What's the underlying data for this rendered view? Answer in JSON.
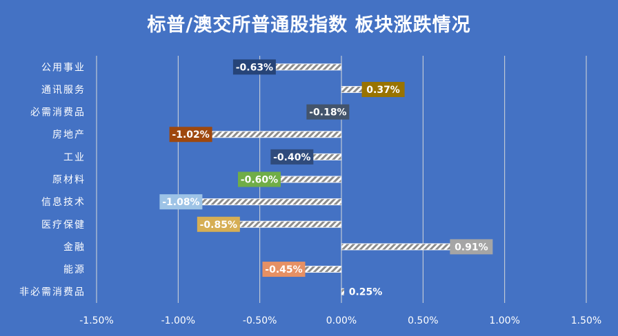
{
  "title": "标普/澳交所普通股指数 板块涨跌情况",
  "chart_data": {
    "type": "bar",
    "orientation": "horizontal",
    "title": "标普/澳交所普通股指数 板块涨跌情况",
    "categories": [
      "公用事业",
      "通讯服务",
      "必需消费品",
      "房地产",
      "工业",
      "原材料",
      "信息技术",
      "医疗保健",
      "金融",
      "能源",
      "非必需消费品"
    ],
    "values": [
      -0.63,
      0.37,
      -0.18,
      -1.02,
      -0.4,
      -0.6,
      -1.08,
      -0.85,
      0.91,
      -0.45,
      0.25
    ],
    "data_labels": [
      "-0.63%",
      "0.37%",
      "-0.18%",
      "-1.02%",
      "-0.40%",
      "-0.60%",
      "-1.08%",
      "-0.85%",
      "0.91%",
      "-0.45%",
      "0.25%"
    ],
    "label_colors": [
      "#264478",
      "#997300",
      "#43546C",
      "#9E480E",
      "#2F4B7C",
      "#70AD47",
      "#9DC3E6",
      "#D6AE54",
      "#A5A5A5",
      "#E69064",
      "#4472C4"
    ],
    "bar_stroke": "#F2F2F2",
    "xlim": [
      -1.5,
      1.5
    ],
    "xticks": [
      -1.5,
      -1.0,
      -0.5,
      0.0,
      0.5,
      1.0,
      1.5
    ],
    "xtick_labels": [
      "-1.50%",
      "-1.00%",
      "-0.50%",
      "0.00%",
      "0.50%",
      "1.00%",
      "1.50%"
    ],
    "grid": true,
    "xlabel": "",
    "ylabel": ""
  }
}
